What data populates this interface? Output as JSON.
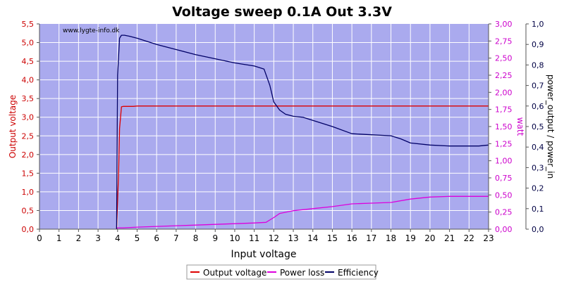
{
  "chart_data": {
    "type": "line",
    "title": "Voltage sweep 0.1A Out 3.3V",
    "watermark": "www.lygte-info.dk",
    "xlabel": "Input voltage",
    "ylabel_left": "Output voltage",
    "ylabel_right1": "watt",
    "ylabel_right2": "power_output / power_in",
    "xlim": [
      0,
      23
    ],
    "ylim_left": [
      0,
      5.5
    ],
    "ylim_right1": [
      0,
      3.0
    ],
    "ylim_right2": [
      0,
      1.0
    ],
    "x_ticks": [
      "0",
      "1",
      "2",
      "3",
      "4",
      "5",
      "6",
      "7",
      "8",
      "9",
      "10",
      "11",
      "12",
      "13",
      "14",
      "15",
      "16",
      "17",
      "18",
      "19",
      "20",
      "21",
      "22",
      "23"
    ],
    "y_ticks_left": [
      "0,0",
      "0,5",
      "1,0",
      "1,5",
      "2,0",
      "2,5",
      "3,0",
      "3,5",
      "4,0",
      "4,5",
      "5,0",
      "5,5"
    ],
    "y_ticks_right1": [
      "0,00",
      "0,25",
      "0,50",
      "0,75",
      "1,00",
      "1,25",
      "1,50",
      "1,75",
      "2,00",
      "2,25",
      "2,50",
      "2,75",
      "3,00"
    ],
    "y_ticks_right2": [
      "0,0",
      "0,1",
      "0,2",
      "0,3",
      "0,4",
      "0,5",
      "0,6",
      "0,7",
      "0,8",
      "0,9",
      "1,0"
    ],
    "grid": true,
    "legend_position": "bottom-center",
    "colors": {
      "plot_bg": "#aaaaee",
      "grid": "#ffffff",
      "output_voltage": "#dd0000",
      "power_loss": "#dd00dd",
      "efficiency": "#000066",
      "title": "#000000",
      "left_axis": "#cc0000",
      "right1_axis": "#cc00cc",
      "right2_axis": "#000044"
    },
    "series": [
      {
        "name": "Output voltage",
        "axis": "left",
        "x": [
          3.95,
          4.05,
          4.1,
          4.2,
          4.3,
          4.5,
          4.8,
          5.0,
          6,
          8,
          10,
          12,
          14,
          16,
          18,
          20,
          22,
          23
        ],
        "y": [
          0.0,
          1.5,
          2.7,
          3.28,
          3.29,
          3.29,
          3.29,
          3.3,
          3.3,
          3.3,
          3.3,
          3.3,
          3.3,
          3.3,
          3.3,
          3.3,
          3.3,
          3.3
        ]
      },
      {
        "name": "Power loss",
        "axis": "right1",
        "x": [
          3.95,
          4.0,
          4.3,
          5.0,
          6.0,
          7.0,
          8.0,
          9.0,
          10.0,
          11.0,
          11.6,
          12.0,
          12.3,
          13.0,
          14.0,
          15.0,
          16.0,
          17.0,
          18.0,
          19.0,
          20.0,
          21.0,
          22.0,
          23.0
        ],
        "y": [
          0.0,
          0.02,
          0.02,
          0.03,
          0.04,
          0.05,
          0.06,
          0.07,
          0.08,
          0.09,
          0.1,
          0.17,
          0.23,
          0.27,
          0.3,
          0.33,
          0.37,
          0.38,
          0.39,
          0.44,
          0.47,
          0.48,
          0.48,
          0.48
        ]
      },
      {
        "name": "Efficiency",
        "axis": "right2",
        "x": [
          3.95,
          4.0,
          4.1,
          4.2,
          4.35,
          4.6,
          5.0,
          6.0,
          7.0,
          8.0,
          9.0,
          10.0,
          11.0,
          11.5,
          11.8,
          12.0,
          12.3,
          12.6,
          13.0,
          13.5,
          14.0,
          15.0,
          16.0,
          17.0,
          18.0,
          18.5,
          19.0,
          20.0,
          21.0,
          22.0,
          22.5,
          23.0
        ],
        "y": [
          0.0,
          0.75,
          0.93,
          0.945,
          0.945,
          0.94,
          0.93,
          0.9,
          0.875,
          0.85,
          0.83,
          0.81,
          0.795,
          0.78,
          0.7,
          0.62,
          0.58,
          0.56,
          0.55,
          0.545,
          0.53,
          0.5,
          0.465,
          0.46,
          0.455,
          0.44,
          0.42,
          0.41,
          0.405,
          0.405,
          0.405,
          0.41
        ]
      }
    ]
  }
}
